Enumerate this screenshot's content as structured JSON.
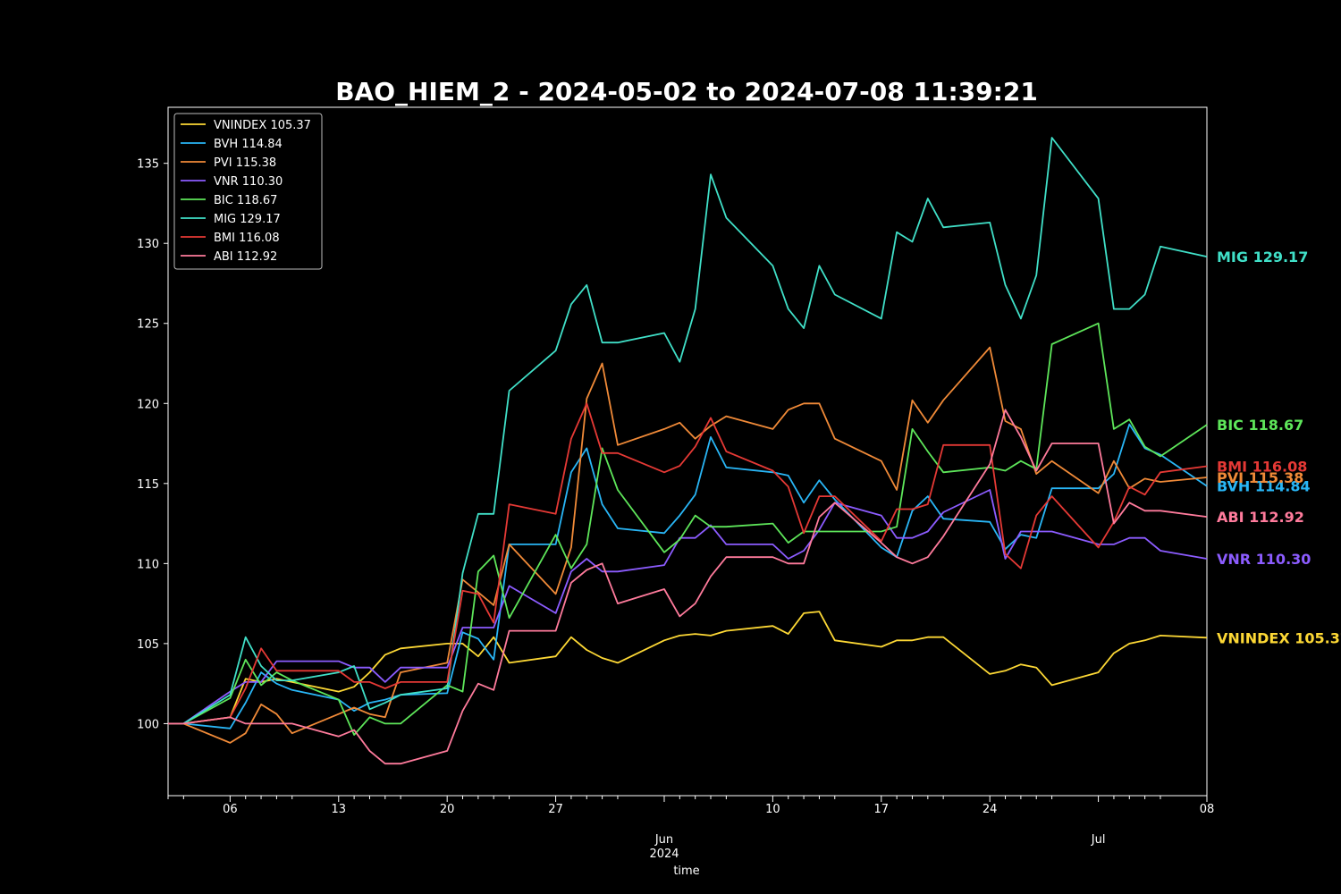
{
  "chart_data": {
    "type": "line",
    "title": "BAO_HIEM_2 - 2024-05-02 to 2024-07-08 11:39:21",
    "xlabel": "time",
    "ylabel": "",
    "ylim": [
      95.5,
      138.5
    ],
    "yticks": [
      100,
      105,
      110,
      115,
      120,
      125,
      130,
      135
    ],
    "x": [
      "2024-05-03",
      "2024-05-06",
      "2024-05-07",
      "2024-05-08",
      "2024-05-09",
      "2024-05-10",
      "2024-05-13",
      "2024-05-14",
      "2024-05-15",
      "2024-05-16",
      "2024-05-17",
      "2024-05-20",
      "2024-05-21",
      "2024-05-22",
      "2024-05-23",
      "2024-05-24",
      "2024-05-27",
      "2024-05-28",
      "2024-05-29",
      "2024-05-30",
      "2024-05-31",
      "2024-06-03",
      "2024-06-04",
      "2024-06-05",
      "2024-06-06",
      "2024-06-07",
      "2024-06-10",
      "2024-06-11",
      "2024-06-12",
      "2024-06-13",
      "2024-06-14",
      "2024-06-17",
      "2024-06-18",
      "2024-06-19",
      "2024-06-20",
      "2024-06-21",
      "2024-06-24",
      "2024-06-25",
      "2024-06-26",
      "2024-06-27",
      "2024-06-28",
      "2024-07-01",
      "2024-07-02",
      "2024-07-03",
      "2024-07-04",
      "2024-07-05",
      "2024-07-08"
    ],
    "x_axis_labels": [
      {
        "date": "2024-05-06",
        "text": "06"
      },
      {
        "date": "2024-05-13",
        "text": "13"
      },
      {
        "date": "2024-05-20",
        "text": "20"
      },
      {
        "date": "2024-05-27",
        "text": "27"
      },
      {
        "date": "2024-06-10",
        "text": "10"
      },
      {
        "date": "2024-06-17",
        "text": "17"
      },
      {
        "date": "2024-06-24",
        "text": "24"
      },
      {
        "date": "2024-07-08",
        "text": "08"
      }
    ],
    "x_month_labels": [
      {
        "date": "2024-06-03",
        "text": "Jun",
        "sub": "2024"
      },
      {
        "date": "2024-07-01",
        "text": "Jul",
        "sub": ""
      }
    ],
    "minor_tick_dates": [
      "2024-05-02",
      "2024-05-03",
      "2024-05-07",
      "2024-05-08",
      "2024-05-09",
      "2024-05-10",
      "2024-05-14",
      "2024-05-15",
      "2024-05-16",
      "2024-05-17",
      "2024-05-21",
      "2024-05-22",
      "2024-05-23",
      "2024-05-24",
      "2024-05-28",
      "2024-05-29",
      "2024-05-30",
      "2024-05-31",
      "2024-06-04",
      "2024-06-05",
      "2024-06-06",
      "2024-06-07",
      "2024-06-11",
      "2024-06-12",
      "2024-06-13",
      "2024-06-14",
      "2024-06-18",
      "2024-06-19",
      "2024-06-20",
      "2024-06-21",
      "2024-06-25",
      "2024-06-26",
      "2024-06-27",
      "2024-06-28",
      "2024-07-02",
      "2024-07-03",
      "2024-07-04",
      "2024-07-05"
    ],
    "legend_position": "upper-left",
    "grid": false,
    "series": [
      {
        "name": "VNINDEX 105.37",
        "label": "VNINDEX 105.37",
        "color": "#fdd835",
        "values": [
          100.0,
          100.4,
          102.8,
          102.6,
          102.8,
          102.6,
          102.0,
          102.3,
          103.2,
          104.3,
          104.7,
          105.0,
          105.0,
          104.2,
          105.4,
          103.8,
          104.2,
          105.4,
          104.6,
          104.1,
          103.8,
          105.2,
          105.5,
          105.6,
          105.5,
          105.8,
          106.1,
          105.6,
          106.9,
          107.0,
          105.2,
          104.8,
          105.2,
          105.2,
          105.4,
          105.4,
          103.1,
          103.3,
          103.7,
          103.5,
          102.4,
          103.2,
          104.4,
          105.0,
          105.2,
          105.5,
          105.37
        ]
      },
      {
        "name": "BVH 114.84",
        "label": "BVH 114.84",
        "color": "#29b6f6",
        "values": [
          100.0,
          99.7,
          101.3,
          103.2,
          102.5,
          102.1,
          101.5,
          100.8,
          101.3,
          101.5,
          101.8,
          101.9,
          105.7,
          105.3,
          104.0,
          111.2,
          111.2,
          115.7,
          117.2,
          113.7,
          112.2,
          111.9,
          113.0,
          114.3,
          117.9,
          116.0,
          115.7,
          115.5,
          113.8,
          115.2,
          114.0,
          111.0,
          110.4,
          113.3,
          114.2,
          112.8,
          112.6,
          110.9,
          111.8,
          111.6,
          114.7,
          114.7,
          115.6,
          118.7,
          117.2,
          116.8,
          114.84
        ]
      },
      {
        "name": "PVI 115.38",
        "label": "PVI 115.38",
        "color": "#f08a38",
        "values": [
          100.0,
          98.8,
          99.4,
          101.2,
          100.6,
          99.4,
          100.6,
          101.0,
          100.6,
          100.4,
          103.2,
          103.8,
          109.0,
          108.2,
          107.4,
          111.2,
          108.1,
          111.0,
          120.3,
          122.5,
          117.4,
          118.4,
          118.8,
          117.8,
          118.6,
          119.2,
          118.4,
          119.6,
          120.0,
          120.0,
          117.8,
          116.4,
          114.6,
          120.2,
          118.8,
          120.2,
          123.5,
          118.9,
          118.4,
          115.6,
          116.4,
          114.4,
          116.4,
          114.7,
          115.3,
          115.1,
          115.38
        ]
      },
      {
        "name": "VNR 110.30",
        "label": "VNR 110.30",
        "color": "#8c5cff",
        "values": [
          100.0,
          102.0,
          102.6,
          102.6,
          103.9,
          103.9,
          103.9,
          103.5,
          103.5,
          102.6,
          103.5,
          103.5,
          106.0,
          106.0,
          106.0,
          108.6,
          106.9,
          109.5,
          110.3,
          109.5,
          109.5,
          109.9,
          111.6,
          111.6,
          112.4,
          111.2,
          111.2,
          110.3,
          110.8,
          112.1,
          113.8,
          113.0,
          111.6,
          111.6,
          112.0,
          113.2,
          114.6,
          110.3,
          112.0,
          112.0,
          112.0,
          111.2,
          111.2,
          111.6,
          111.6,
          110.8,
          110.3
        ]
      },
      {
        "name": "BIC 118.67",
        "label": "BIC 118.67",
        "color": "#5ee65a",
        "values": [
          100.0,
          101.6,
          104.0,
          102.4,
          103.2,
          102.7,
          101.5,
          99.3,
          100.4,
          100.0,
          100.0,
          102.4,
          102.0,
          109.5,
          110.5,
          106.6,
          111.8,
          109.7,
          111.2,
          117.2,
          114.6,
          110.7,
          111.5,
          113.0,
          112.3,
          112.3,
          112.5,
          111.3,
          112.0,
          112.0,
          112.0,
          112.0,
          112.3,
          118.4,
          117.0,
          115.7,
          116.0,
          115.8,
          116.4,
          115.9,
          123.7,
          125.0,
          118.4,
          119.0,
          117.3,
          116.7,
          118.67
        ]
      },
      {
        "name": "MIG 129.17",
        "label": "MIG 129.17",
        "color": "#40e0c8",
        "values": [
          100.0,
          101.8,
          105.4,
          103.6,
          102.7,
          102.7,
          103.2,
          103.6,
          100.9,
          101.3,
          101.8,
          102.2,
          109.4,
          113.1,
          113.1,
          120.8,
          123.3,
          126.2,
          127.4,
          123.8,
          123.8,
          124.4,
          122.6,
          125.9,
          134.3,
          131.6,
          128.6,
          125.9,
          124.7,
          128.6,
          126.8,
          125.3,
          130.7,
          130.1,
          132.8,
          131.0,
          131.3,
          127.4,
          125.3,
          128.0,
          136.6,
          132.8,
          125.9,
          125.9,
          126.8,
          129.8,
          129.17
        ]
      },
      {
        "name": "BMI 116.08",
        "label": "BMI 116.08",
        "color": "#e53935",
        "values": [
          100.0,
          100.4,
          102.2,
          104.7,
          103.3,
          103.3,
          103.3,
          102.6,
          102.6,
          102.2,
          102.6,
          102.6,
          108.3,
          108.1,
          106.3,
          113.7,
          113.1,
          117.8,
          120.0,
          116.9,
          116.9,
          115.7,
          116.1,
          117.3,
          119.1,
          117.0,
          115.8,
          114.8,
          111.9,
          114.2,
          114.2,
          111.4,
          113.4,
          113.4,
          113.7,
          117.4,
          117.4,
          110.6,
          109.7,
          113.0,
          114.2,
          111.0,
          112.6,
          114.8,
          114.3,
          115.7,
          116.08
        ]
      },
      {
        "name": "ABI 112.92",
        "label": "ABI 112.92",
        "color": "#ff7b9c",
        "values": [
          100.0,
          100.4,
          100.0,
          100.0,
          100.0,
          100.0,
          99.2,
          99.6,
          98.3,
          97.5,
          97.5,
          98.3,
          100.8,
          102.5,
          102.1,
          105.8,
          105.8,
          108.8,
          109.6,
          110.0,
          107.5,
          108.4,
          106.7,
          107.5,
          109.2,
          110.4,
          110.4,
          110.0,
          110.0,
          112.9,
          113.8,
          111.3,
          110.4,
          110.0,
          110.4,
          111.7,
          116.2,
          119.6,
          117.9,
          115.8,
          117.5,
          117.5,
          112.5,
          113.8,
          113.3,
          113.3,
          112.92
        ]
      }
    ]
  }
}
